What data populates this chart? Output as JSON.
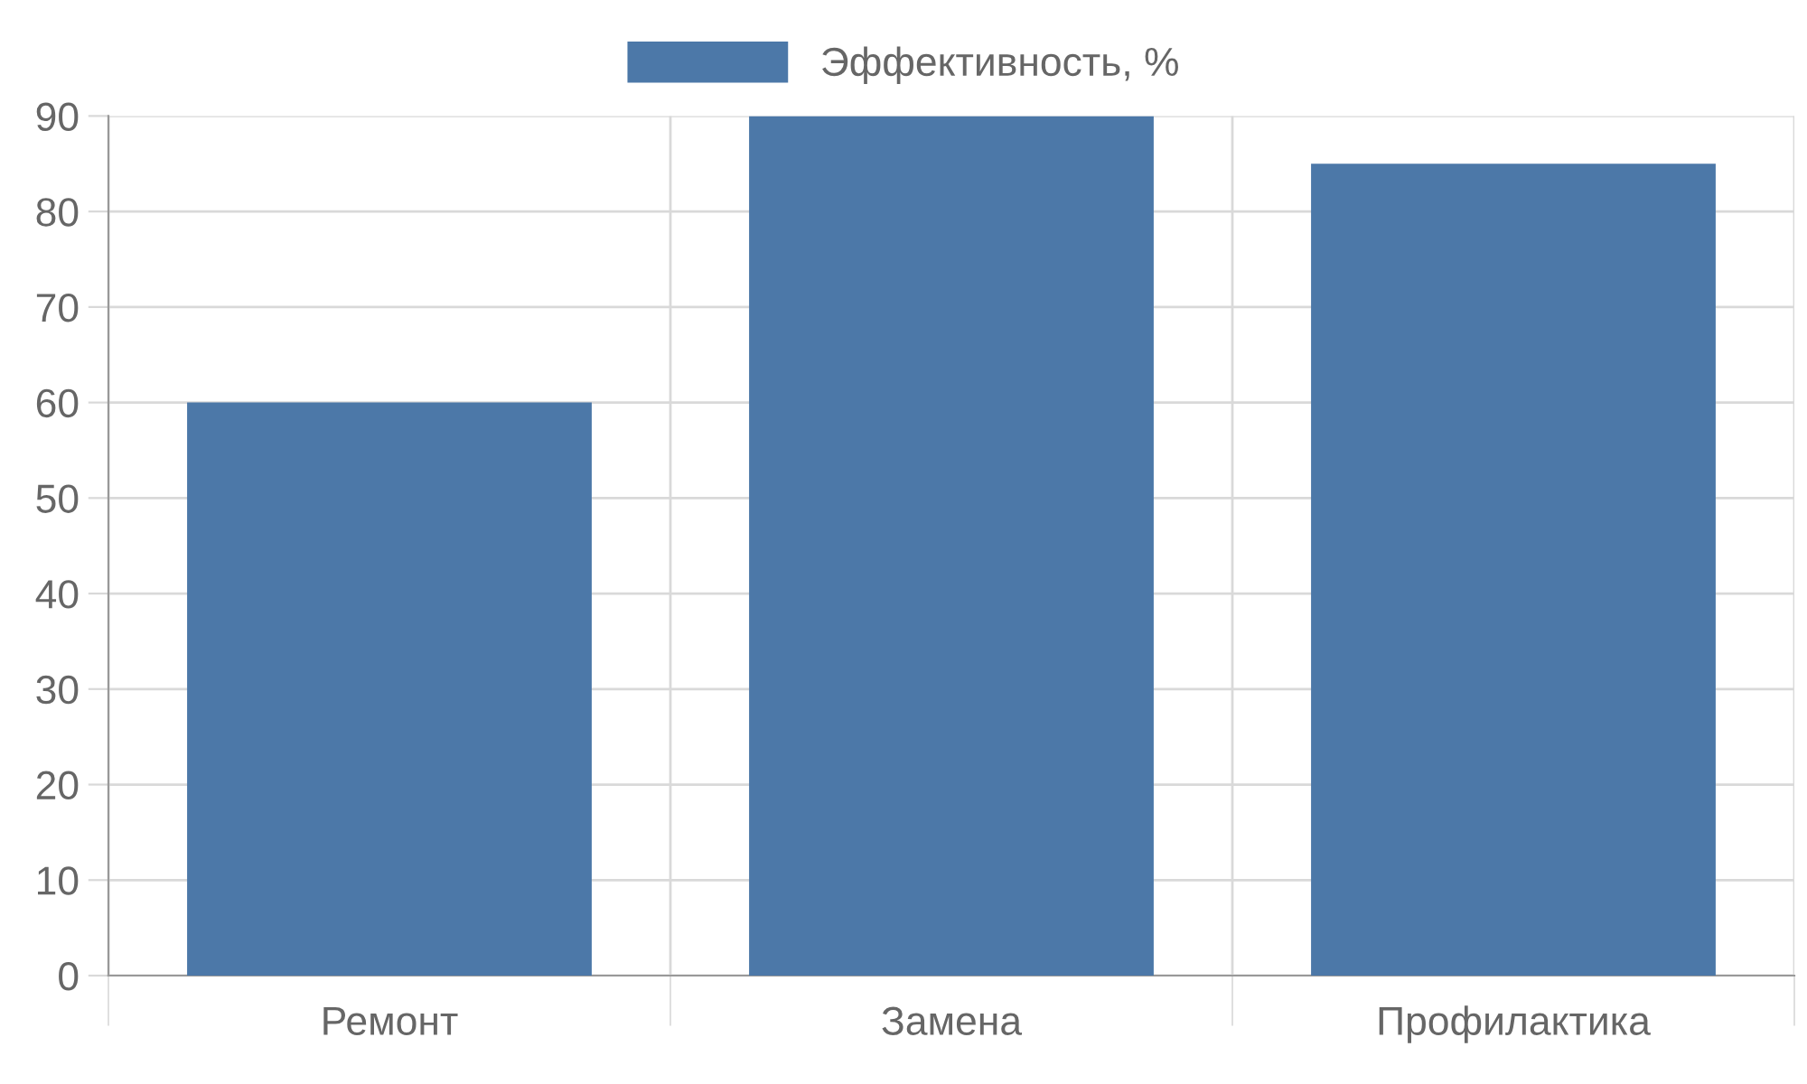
{
  "chart_data": {
    "type": "bar",
    "categories": [
      "Ремонт",
      "Замена",
      "Профилактика"
    ],
    "series": [
      {
        "name": "Эффективность, %",
        "color": "#4c78a8",
        "values": [
          60,
          90,
          85
        ]
      }
    ],
    "ylim": [
      0,
      90
    ],
    "yticks": [
      0,
      10,
      20,
      30,
      40,
      50,
      60,
      70,
      80,
      90
    ],
    "grid": true,
    "legend": "top"
  }
}
